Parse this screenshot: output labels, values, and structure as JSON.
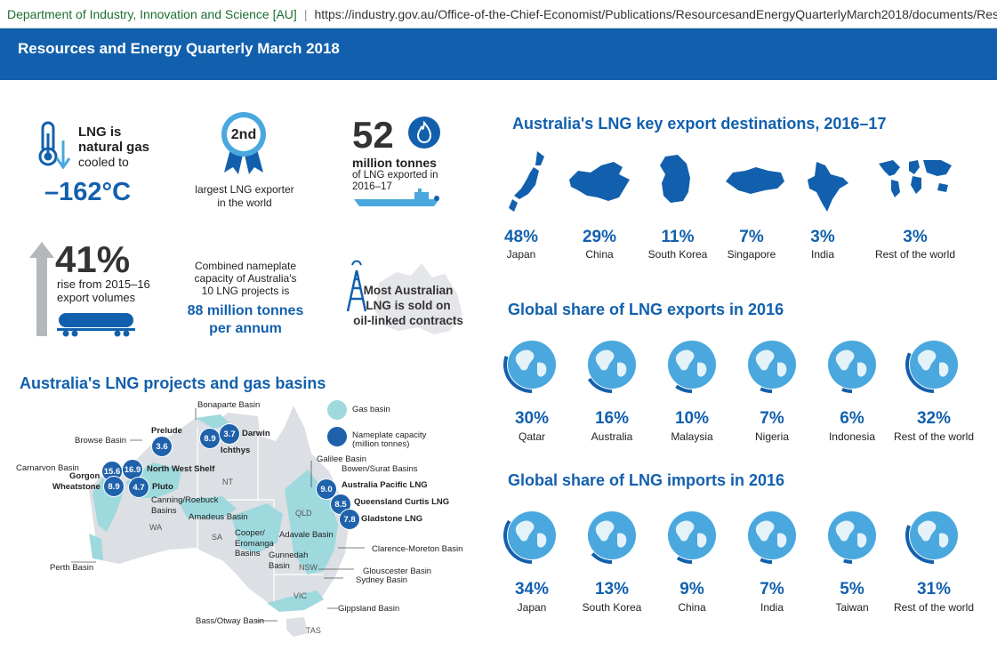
{
  "browser": {
    "site_name": "Department of Industry, Innovation and Science [AU]",
    "url": "https://industry.gov.au/Office-of-the-Chief-Economist/Publications/ResourcesandEnergyQuarterlyMarch2018/documents/Res"
  },
  "banner": {
    "title": "Resources and Energy Quarterly March 2018"
  },
  "facts": {
    "lng_line1": "LNG is",
    "lng_line2": "natural gas",
    "lng_line3": "cooled to",
    "lng_temp": "–162°C",
    "rank": "2nd",
    "rank_line1": "largest LNG exporter",
    "rank_line2": "in the world",
    "export_number": "52",
    "export_line1": "million tonnes",
    "export_line2": "of LNG exported in",
    "export_line3": "2016–17",
    "rise_pct": "41%",
    "rise_line1": "rise from 2015–16",
    "rise_line2": "export volumes",
    "capacity_line1": "Combined nameplate",
    "capacity_line2": "capacity of Australia's",
    "capacity_line3": "10 LNG projects is",
    "capacity_value1": "88 million tonnes",
    "capacity_value2": "per annum",
    "oil_line1": "Most Australian",
    "oil_line2": "LNG is sold on",
    "oil_line3": "oil-linked contracts"
  },
  "map_section": {
    "title": "Australia's LNG projects and gas basins",
    "legend_basin": "Gas basin",
    "legend_capacity1": "Nameplate capacity",
    "legend_capacity2": "(million tonnes)",
    "basins": {
      "bonaparte": "Bonaparte Basin",
      "browse": "Browse Basin",
      "carnarvon": "Carnarvon Basin",
      "canning1": "Canning/Roebuck",
      "canning2": "Basins",
      "amadeus": "Amadeus Basin",
      "cooper1": "Cooper/",
      "cooper2": "Eromanga",
      "cooper3": "Basins",
      "adavale": "Adavale Basin",
      "galilee": "Galilee Basin",
      "bowen": "Bowen/Surat Basins",
      "clarence": "Clarence-Moreton Basin",
      "gunnedah1": "Gunnedah",
      "gunnedah2": "Basin",
      "gloucester": "Glouscester Basin",
      "sydney": "Sydney Basin",
      "gippsland": "Gippsland Basin",
      "bass": "Bass/Otway Basin",
      "perth": "Perth Basin"
    },
    "states": {
      "nt": "NT",
      "wa": "WA",
      "sa": "SA",
      "qld": "QLD",
      "nsw": "NSW",
      "vic": "VIC",
      "tas": "TAS"
    },
    "projects": {
      "prelude": {
        "name": "Prelude",
        "value": "3.6"
      },
      "ichthys": {
        "name": "Ichthys",
        "value": "8.9"
      },
      "darwin": {
        "name": "Darwin",
        "value": "3.7"
      },
      "nws": {
        "name": "North West Shelf",
        "value": "16.9"
      },
      "gorgon": {
        "name": "Gorgon",
        "value": "15.6"
      },
      "wheatstone": {
        "name": "Wheatstone",
        "value": "8.9"
      },
      "pluto": {
        "name": "Pluto",
        "value": "4.7"
      },
      "aplng": {
        "name": "Australia Pacific LNG",
        "value": "9.0"
      },
      "qclng": {
        "name": "Queensland Curtis LNG",
        "value": "8.5"
      },
      "glng": {
        "name": "Gladstone LNG",
        "value": "7.8"
      }
    }
  },
  "destinations": {
    "title": "Australia's LNG key export destinations, 2016–17",
    "items": [
      {
        "pct": "48%",
        "label": "Japan",
        "icon": "japan-map-icon"
      },
      {
        "pct": "29%",
        "label": "China",
        "icon": "china-map-icon"
      },
      {
        "pct": "11%",
        "label": "South Korea",
        "icon": "south-korea-map-icon"
      },
      {
        "pct": "7%",
        "label": "Singapore",
        "icon": "singapore-map-icon"
      },
      {
        "pct": "3%",
        "label": "India",
        "icon": "india-map-icon"
      },
      {
        "pct": "3%",
        "label": "Rest of the world",
        "icon": "world-map-icon"
      }
    ]
  },
  "exports": {
    "title": "Global share of LNG exports in 2016",
    "items": [
      {
        "pct": "30%",
        "label": "Qatar",
        "value": 30
      },
      {
        "pct": "16%",
        "label": "Australia",
        "value": 16
      },
      {
        "pct": "10%",
        "label": "Malaysia",
        "value": 10
      },
      {
        "pct": "7%",
        "label": "Nigeria",
        "value": 7
      },
      {
        "pct": "6%",
        "label": "Indonesia",
        "value": 6
      },
      {
        "pct": "32%",
        "label": "Rest of the world",
        "value": 32
      }
    ]
  },
  "imports": {
    "title": "Global share of LNG imports in 2016",
    "items": [
      {
        "pct": "34%",
        "label": "Japan",
        "value": 34
      },
      {
        "pct": "13%",
        "label": "South Korea",
        "value": 13
      },
      {
        "pct": "9%",
        "label": "China",
        "value": 9
      },
      {
        "pct": "7%",
        "label": "India",
        "value": 7
      },
      {
        "pct": "5%",
        "label": "Taiwan",
        "value": 5
      },
      {
        "pct": "31%",
        "label": "Rest of the world",
        "value": 31
      }
    ]
  },
  "colors": {
    "primary": "#1260ad",
    "basin": "#9ed9de",
    "land": "#dcdfe3",
    "globe": "#4aa8de"
  }
}
